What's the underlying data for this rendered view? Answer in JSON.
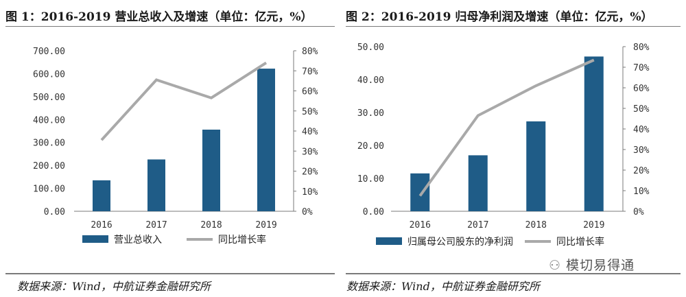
{
  "figures": [
    {
      "title": "图 1：2016-2019 营业总收入及增速（单位：亿元，%）",
      "source": "数据来源：Wind，中航证券金融研究所"
    },
    {
      "title": "图 2：2016-2019 归母净利润及增速（单位：亿元，%）",
      "source": "数据来源：Wind，中航证券金融研究所"
    }
  ],
  "watermark": "模切易得通",
  "colors": {
    "bar": "#1f5c87",
    "line": "#a9a9a9",
    "axis": "#7a7a7a"
  },
  "chart_data": [
    {
      "type": "bar",
      "title": "2016-2019 营业总收入及增速（单位：亿元，%）",
      "categories": [
        "2016",
        "2017",
        "2018",
        "2019"
      ],
      "series": [
        {
          "name": "营业总收入",
          "type": "bar",
          "axis": "left",
          "values": [
            135,
            226,
            356,
            622
          ]
        },
        {
          "name": "同比增长率",
          "type": "line",
          "axis": "right",
          "values": [
            35.5,
            65.5,
            56.5,
            74
          ]
        }
      ],
      "yleft": {
        "min": 0,
        "max": 700,
        "ticks": [
          "0.00",
          "100.00",
          "200.00",
          "300.00",
          "400.00",
          "500.00",
          "600.00",
          "700.00"
        ]
      },
      "yright": {
        "min": 0,
        "max": 80,
        "ticks": [
          "0%",
          "10%",
          "20%",
          "30%",
          "40%",
          "50%",
          "60%",
          "70%",
          "80%"
        ]
      },
      "legend": {
        "position": "bottom",
        "bar_label": "营业总收入",
        "line_label": "同比增长率"
      }
    },
    {
      "type": "bar",
      "title": "2016-2019 归母净利润及增速（单位：亿元，%）",
      "categories": [
        "2016",
        "2017",
        "2018",
        "2019"
      ],
      "series": [
        {
          "name": "归属母公司股东的净利润",
          "type": "bar",
          "axis": "left",
          "values": [
            11.5,
            17,
            27.3,
            47
          ]
        },
        {
          "name": "同比增长率",
          "type": "line",
          "axis": "right",
          "values": [
            7.5,
            46.5,
            61,
            73.5
          ]
        }
      ],
      "yleft": {
        "min": 0,
        "max": 50,
        "ticks": [
          "0.00",
          "10.00",
          "20.00",
          "30.00",
          "40.00",
          "50.00"
        ]
      },
      "yright": {
        "min": 0,
        "max": 80,
        "ticks": [
          "0%",
          "10%",
          "20%",
          "30%",
          "40%",
          "50%",
          "60%",
          "70%",
          "80%"
        ]
      },
      "legend": {
        "position": "bottom",
        "bar_label": "归属母公司股东的净利润",
        "line_label": "同比增长率"
      }
    }
  ]
}
